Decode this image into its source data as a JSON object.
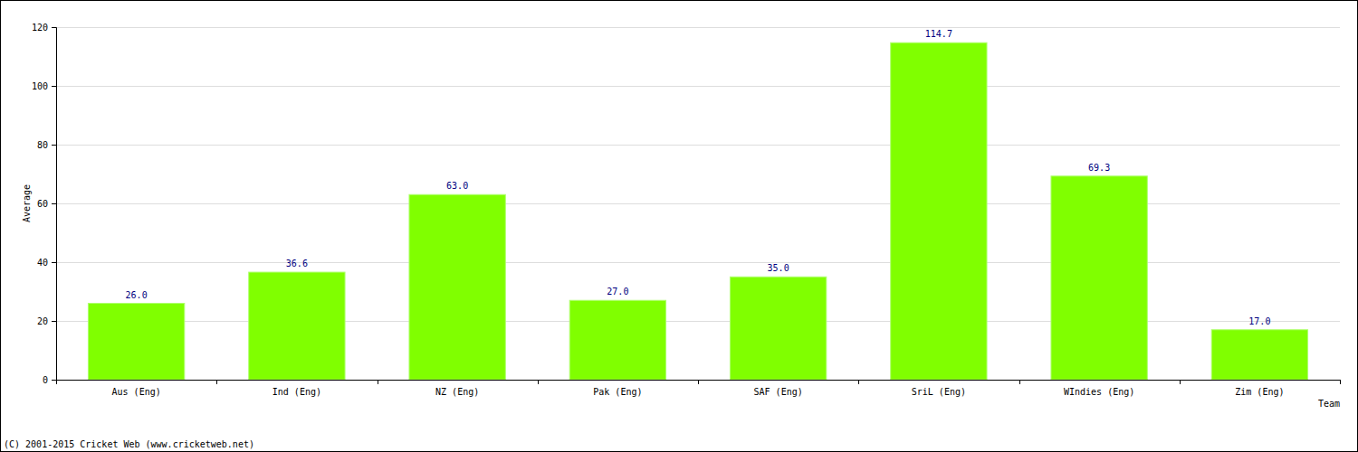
{
  "chart_data": {
    "type": "bar",
    "categories": [
      "Aus (Eng)",
      "Ind (Eng)",
      "NZ (Eng)",
      "Pak (Eng)",
      "SAF (Eng)",
      "SriL (Eng)",
      "WIndies (Eng)",
      "Zim (Eng)"
    ],
    "values": [
      26.0,
      36.6,
      63.0,
      27.0,
      35.0,
      114.7,
      69.3,
      17.0
    ],
    "value_labels": [
      "26.0",
      "36.6",
      "63.0",
      "27.0",
      "35.0",
      "114.7",
      "69.3",
      "17.0"
    ],
    "color": "#80ff00",
    "x_label": "Team",
    "y_label": "Average",
    "annotations": [
      "(C) 2001-2015 Cricket Web (www.cricketweb.net)"
    ],
    "ylim": [
      0,
      120
    ],
    "yticks": [
      0,
      20,
      40,
      60,
      80,
      100,
      120
    ],
    "grid": true,
    "data_labels": true
  }
}
